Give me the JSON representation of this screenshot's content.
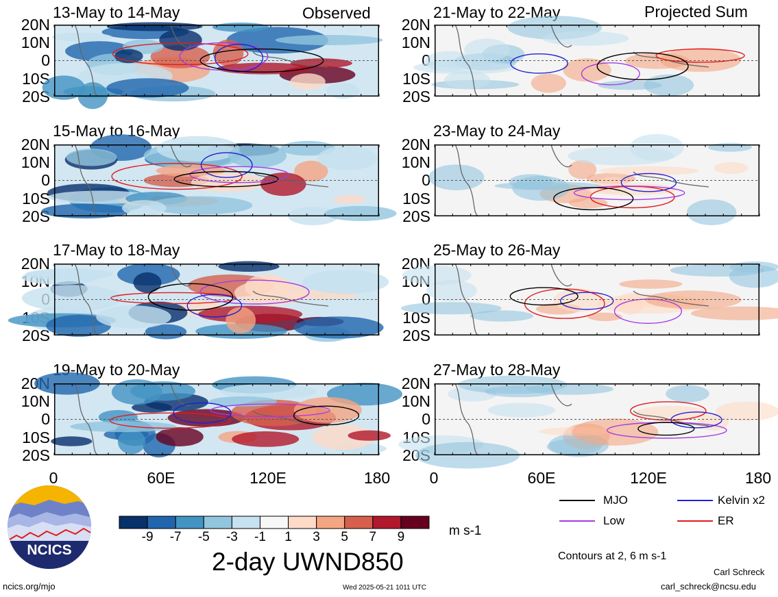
{
  "observed_label": "Observed",
  "projected_label": "Projected Sum",
  "panels_left": [
    {
      "title": "13-May to 14-May"
    },
    {
      "title": "15-May to 16-May"
    },
    {
      "title": "17-May to 18-May"
    },
    {
      "title": "19-May to 20-May"
    }
  ],
  "panels_right": [
    {
      "title": "21-May to 22-May"
    },
    {
      "title": "23-May to 24-May"
    },
    {
      "title": "25-May to 26-May"
    },
    {
      "title": "27-May to 28-May"
    }
  ],
  "lat_labels": [
    "20N",
    "10N",
    "0",
    "10S",
    "20S"
  ],
  "lon_labels": [
    "0",
    "60E",
    "120E",
    "180"
  ],
  "colorbar": {
    "colors": [
      "#08306b",
      "#2166ac",
      "#4393c3",
      "#92c5de",
      "#c6e1ef",
      "#f7f7f7",
      "#fddbc7",
      "#f4a582",
      "#d6604d",
      "#b2182b",
      "#67001f"
    ],
    "labels": [
      "-9",
      "-7",
      "-5",
      "-3",
      "-1",
      "1",
      "3",
      "5",
      "7",
      "9"
    ],
    "units": "m s-1",
    "title": "2-day UWND850"
  },
  "legend": {
    "items": [
      {
        "label": "MJO",
        "color": "#000000"
      },
      {
        "label": "Kelvin x2",
        "color": "#1f1fd6"
      },
      {
        "label": "Low",
        "color": "#a63be0"
      },
      {
        "label": "ER",
        "color": "#e31a1c"
      }
    ],
    "contours_note": "Contours at 2, 6 m s-1"
  },
  "logo_text": "NCICS",
  "footer": {
    "url": "ncics.org/mjo",
    "timestamp": "Wed 2025-05-21 1011 UTC",
    "author": "Carl Schreck",
    "email": "carl_schreck@ncsu.edu"
  }
}
